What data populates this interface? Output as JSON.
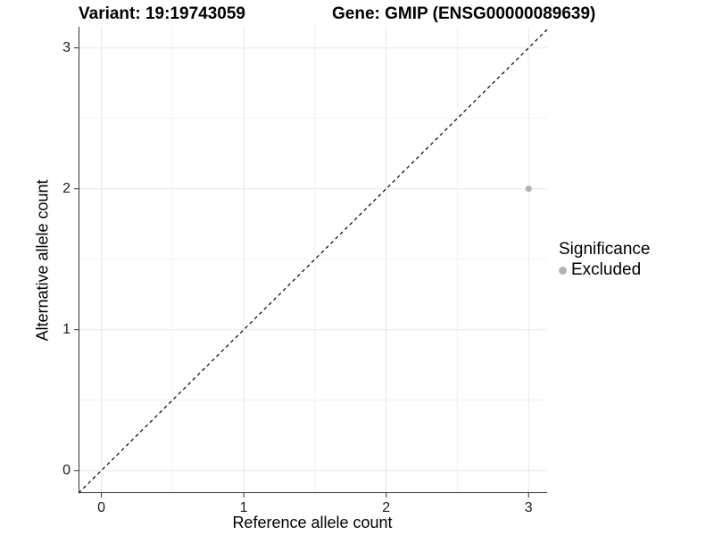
{
  "titles": {
    "variant": "Variant: 19:19743059",
    "gene": "Gene: GMIP (ENSG00000089639)"
  },
  "legend": {
    "title": "Significance",
    "items": [
      {
        "label": "Excluded",
        "color": "#b4b4b4",
        "marker": "circle-icon"
      }
    ]
  },
  "colors": {
    "point": "#b4b4b4",
    "grid_major": "#e8e8e8",
    "grid_minor": "#f1f1f1",
    "axis_line": "#333333",
    "tick_mark": "#333333",
    "reference_line": "#000000",
    "text": "#000000",
    "background": "#ffffff"
  },
  "chart_data": {
    "type": "scatter",
    "titles": [
      "Variant: 19:19743059",
      "Gene: GMIP (ENSG00000089639)"
    ],
    "xlabel": "Reference allele count",
    "ylabel": "Alternative allele count",
    "xlim": [
      -0.16,
      3.13
    ],
    "ylim": [
      -0.16,
      3.15
    ],
    "x_ticks": [
      0,
      1,
      2,
      3
    ],
    "y_ticks": [
      0,
      1,
      2,
      3
    ],
    "minor_ticks": [
      0.5,
      1.5,
      2.5
    ],
    "grid": "on",
    "series": [
      {
        "name": "Excluded",
        "color": "#b4b4b4",
        "points": [
          {
            "x": 3,
            "y": 2
          }
        ]
      }
    ],
    "reference_line": {
      "kind": "identity y=x",
      "style": "dashed",
      "color": "#000000"
    },
    "legend_position": "right"
  }
}
